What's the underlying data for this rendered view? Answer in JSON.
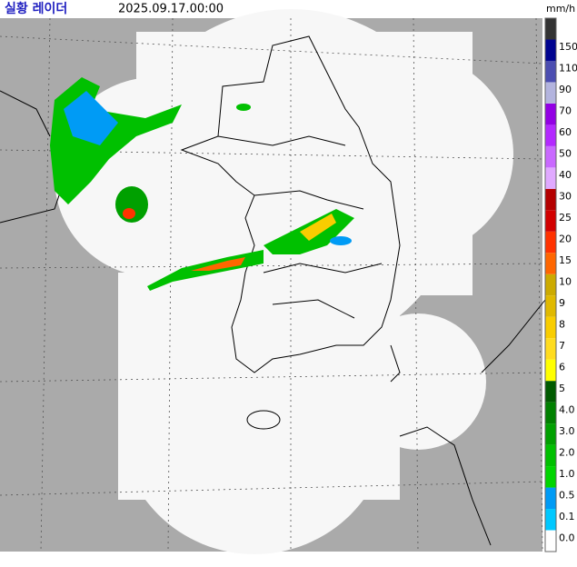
{
  "header": {
    "title": "실황 레이더",
    "timestamp": "2025.09.17.00:00",
    "unit": "mm/h"
  },
  "legend": {
    "top_color": "#333333",
    "items": [
      {
        "label": "0.0",
        "color": "#ffffff"
      },
      {
        "label": "0.1",
        "color": "#00c8ff"
      },
      {
        "label": "0.5",
        "color": "#009bf5"
      },
      {
        "label": "1.0",
        "color": "#00d500"
      },
      {
        "label": "2.0",
        "color": "#00c000"
      },
      {
        "label": "3.0",
        "color": "#00a000"
      },
      {
        "label": "4.0",
        "color": "#008000"
      },
      {
        "label": "5",
        "color": "#005a00"
      },
      {
        "label": "6",
        "color": "#ffff00"
      },
      {
        "label": "7",
        "color": "#ffdc1f"
      },
      {
        "label": "8",
        "color": "#f9cd00"
      },
      {
        "label": "9",
        "color": "#e0b900"
      },
      {
        "label": "10",
        "color": "#ccaa00"
      },
      {
        "label": "15",
        "color": "#ff6600"
      },
      {
        "label": "20",
        "color": "#ff3200"
      },
      {
        "label": "25",
        "color": "#d20000"
      },
      {
        "label": "30",
        "color": "#b40000"
      },
      {
        "label": "40",
        "color": "#e0a9ff"
      },
      {
        "label": "50",
        "color": "#c969ff"
      },
      {
        "label": "60",
        "color": "#b329ff"
      },
      {
        "label": "70",
        "color": "#9300e4"
      },
      {
        "label": "90",
        "color": "#b3b4de"
      },
      {
        "label": "110",
        "color": "#4c4eb1"
      },
      {
        "label": "150",
        "color": "#000390"
      }
    ]
  }
}
